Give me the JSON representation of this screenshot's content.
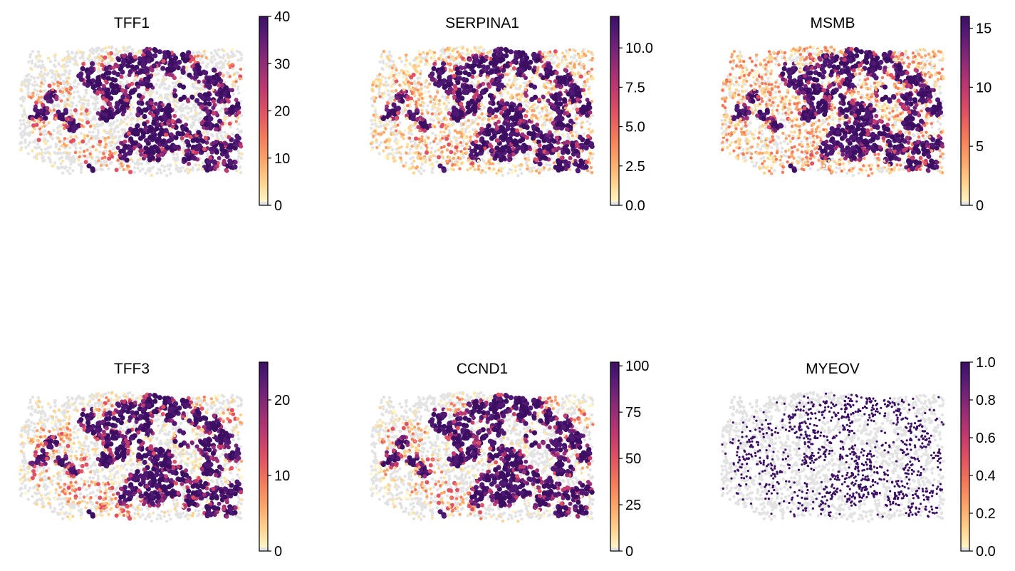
{
  "chart_data": [
    {
      "type": "scatter",
      "title": "TFF1",
      "colorbar": {
        "min": 0,
        "max": 40,
        "ticks": [
          "0",
          "10",
          "20",
          "30",
          "40"
        ]
      },
      "colormap": "magma_r",
      "na_color": "#e3e3e3"
    },
    {
      "type": "scatter",
      "title": "SERPINA1",
      "colorbar": {
        "min": 0,
        "max": 12,
        "ticks": [
          "0.0",
          "2.5",
          "5.0",
          "7.5",
          "10.0"
        ]
      },
      "colormap": "magma_r",
      "na_color": "#e3e3e3"
    },
    {
      "type": "scatter",
      "title": "MSMB",
      "colorbar": {
        "min": 0,
        "max": 16,
        "ticks": [
          "0",
          "5",
          "10",
          "15"
        ]
      },
      "colormap": "magma_r",
      "na_color": "#e3e3e3"
    },
    {
      "type": "scatter",
      "title": "TFF3",
      "colorbar": {
        "min": 0,
        "max": 25,
        "ticks": [
          "0",
          "10",
          "20"
        ]
      },
      "colormap": "magma_r",
      "na_color": "#e3e3e3"
    },
    {
      "type": "scatter",
      "title": "CCND1",
      "colorbar": {
        "min": 0,
        "max": 102,
        "ticks": [
          "0",
          "25",
          "50",
          "75",
          "100"
        ]
      },
      "colormap": "magma_r",
      "na_color": "#e3e3e3"
    },
    {
      "type": "scatter",
      "title": "MYEOV",
      "colorbar": {
        "min": 0,
        "max": 1,
        "ticks": [
          "0.0",
          "0.2",
          "0.4",
          "0.6",
          "0.8",
          "1.0"
        ]
      },
      "colormap": "magma_r",
      "na_color": "#e3e3e3"
    }
  ],
  "colors": {
    "ramp": [
      "#fff5c6",
      "#fed38e",
      "#fca66a",
      "#f47a5a",
      "#e05263",
      "#c23a6f",
      "#9c2e76",
      "#702278",
      "#4f1873",
      "#3c0f63"
    ],
    "na": "#e3e3e3",
    "low": "#fde4a9"
  }
}
